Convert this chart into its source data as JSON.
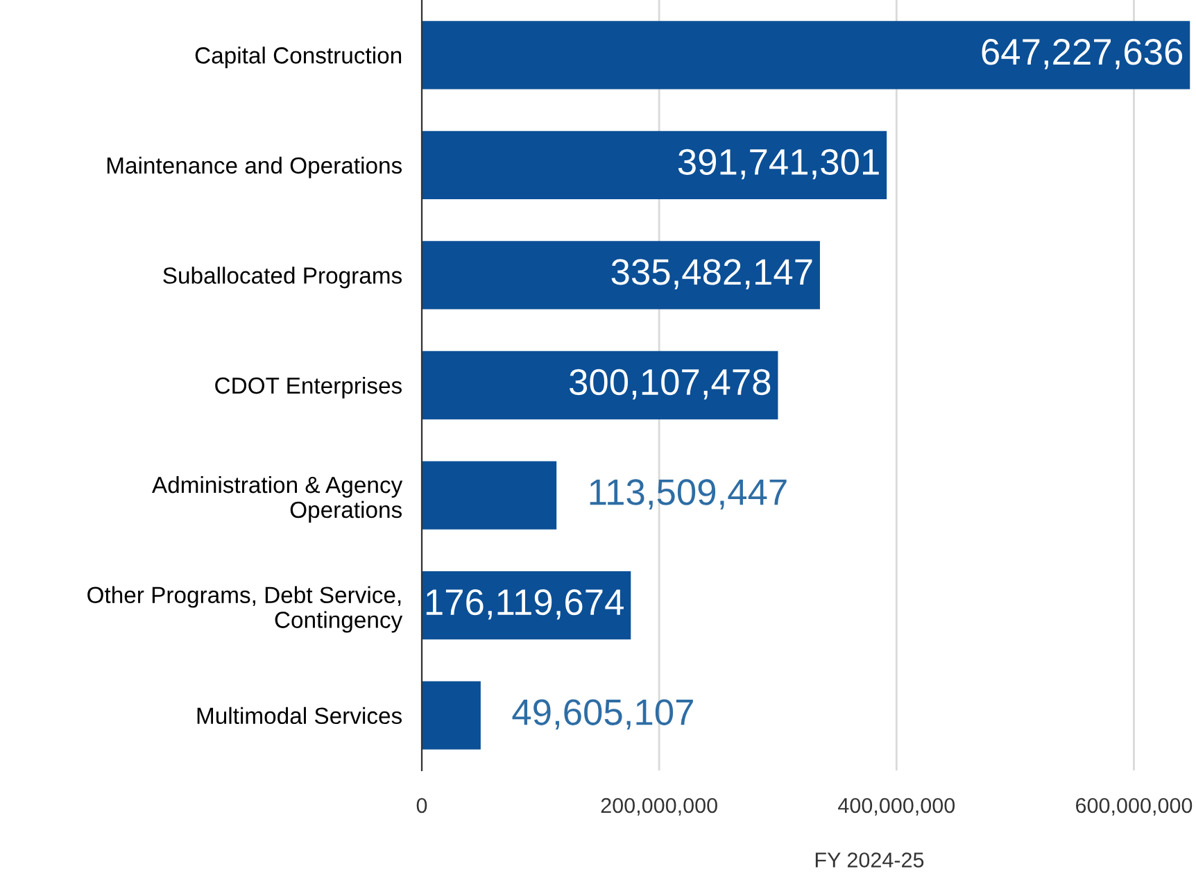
{
  "chart_data": {
    "type": "bar",
    "orientation": "horizontal",
    "xlabel": "FY 2024-25",
    "categories": [
      "Capital Construction",
      "Maintenance and Operations",
      "Suballocated Programs",
      "CDOT Enterprises",
      "Administration & Agency\nOperations",
      "Other Programs, Debt Service,\nContingency",
      "Multimodal Services"
    ],
    "values": [
      647227636,
      391741301,
      335482147,
      300107478,
      113509447,
      176119674,
      49605107
    ],
    "color": "#0b4f96",
    "value_labels": [
      "647,227,636",
      "391,741,301",
      "335,482,147",
      "300,107,478",
      "113,509,447",
      "176,119,674",
      "49,605,107"
    ],
    "xlim": [
      0,
      650000000
    ],
    "xticks": [
      0,
      {
        "value": 200000000,
        "label": "200,000,000"
      },
      {
        "value": 400000000,
        "label": "400,000,000"
      },
      {
        "value": 600000000,
        "label": "600,000,000"
      }
    ],
    "grid": "x"
  }
}
